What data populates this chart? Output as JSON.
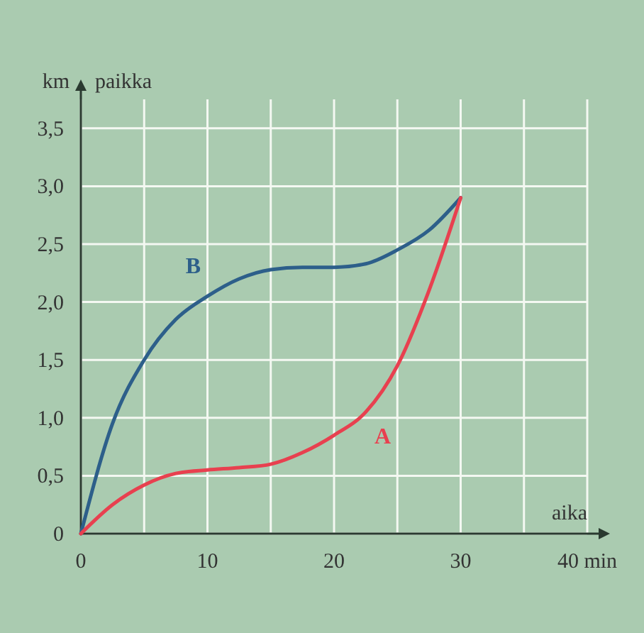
{
  "chart_data": {
    "type": "line",
    "xlabel": "aika",
    "ylabel": "paikka",
    "annotations": [
      "km"
    ],
    "xlim": [
      0,
      40
    ],
    "xticks": [
      0,
      {
        "value": 5,
        "label": null
      },
      10,
      {
        "value": 15,
        "label": null
      },
      20,
      {
        "value": 25,
        "label": null
      },
      {
        "value": 30,
        "label": "30"
      },
      {
        "value": 35,
        "label": null
      },
      {
        "value": 40,
        "label": "40 min"
      }
    ],
    "ylim": [
      0,
      3.75
    ],
    "yticks": [
      0,
      {
        "value": 0.5,
        "label": "0,5"
      },
      {
        "value": 1,
        "label": "1,0"
      },
      {
        "value": 1.5,
        "label": "1,5"
      },
      {
        "value": 2,
        "label": "2,0"
      },
      {
        "value": 2.5,
        "label": "2,5"
      },
      {
        "value": 3,
        "label": "3,0"
      },
      {
        "value": 3.5,
        "label": "3,5"
      }
    ],
    "grid": true,
    "marker": "none",
    "line_style": "solid",
    "series": [
      {
        "name": "B",
        "color": "#2d5f8a",
        "x": [
          0,
          2.5,
          5,
          7.5,
          10,
          12.5,
          15,
          17.5,
          20,
          22.5,
          25,
          27.5,
          30
        ],
        "values": [
          0,
          0.95,
          1.5,
          1.85,
          2.05,
          2.2,
          2.28,
          2.3,
          2.3,
          2.33,
          2.45,
          2.62,
          2.9
        ]
      },
      {
        "name": "A",
        "color": "#e8404f",
        "x": [
          0,
          2.5,
          5,
          7.5,
          10,
          12.5,
          15,
          17.5,
          20,
          22.5,
          25,
          27.5,
          30
        ],
        "values": [
          0,
          0.25,
          0.42,
          0.52,
          0.55,
          0.57,
          0.6,
          0.7,
          0.85,
          1.05,
          1.45,
          2.1,
          2.9
        ]
      }
    ]
  }
}
